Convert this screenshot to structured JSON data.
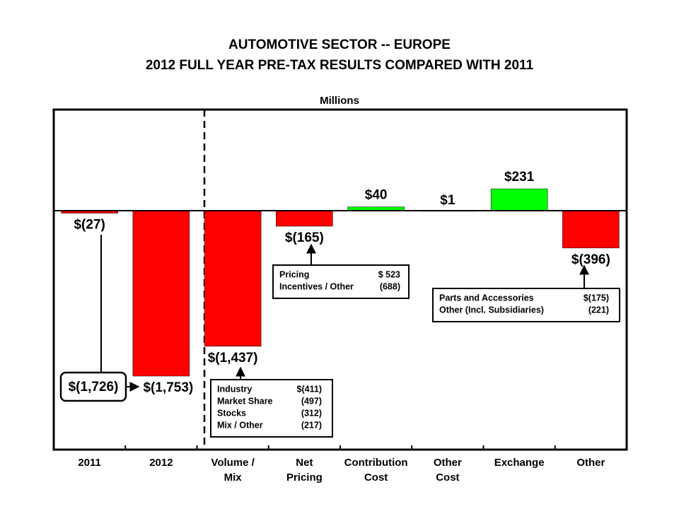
{
  "chart_data": {
    "type": "bar",
    "title": [
      "AUTOMOTIVE SECTOR -- EUROPE",
      "2012 FULL YEAR PRE-TAX RESULTS COMPARED WITH 2011"
    ],
    "subtitle": "Millions",
    "categories": [
      "2011",
      "2012",
      "Volume  /\nMix",
      "Net\nPricing",
      "Contribution\nCost",
      "Other\nCost",
      "Exchange",
      "Other"
    ],
    "values": [
      -27,
      -1753,
      -1437,
      -165,
      40,
      1,
      231,
      -396
    ],
    "value_labels": [
      "$(27)",
      "$(1,753)",
      "$(1,437)",
      "$(165)",
      "$40",
      "$1",
      "$231",
      "$(396)"
    ],
    "colors": [
      "#ff0000",
      "#ff0000",
      "#ff0000",
      "#ff0000",
      "#00ff00",
      "#00ff00",
      "#00ff00",
      "#ff0000"
    ],
    "ylim": [
      -2532,
      1071
    ],
    "annotations": [
      {
        "text": "$(1,726)"
      },
      {
        "rows": [
          [
            "Industry",
            "$(411)"
          ],
          [
            "Market Share",
            "(497)"
          ],
          [
            "Stocks",
            "(312)"
          ],
          [
            "Mix / Other",
            "(217)"
          ]
        ]
      },
      {
        "rows": [
          [
            "Pricing",
            "$ 523"
          ],
          [
            "Incentives / Other",
            "(688)"
          ]
        ]
      },
      {
        "rows": [
          [
            "Parts and Accessories",
            "$(175)"
          ],
          [
            "Other (Incl. Subsidiaries)",
            "(221)"
          ]
        ]
      }
    ]
  }
}
